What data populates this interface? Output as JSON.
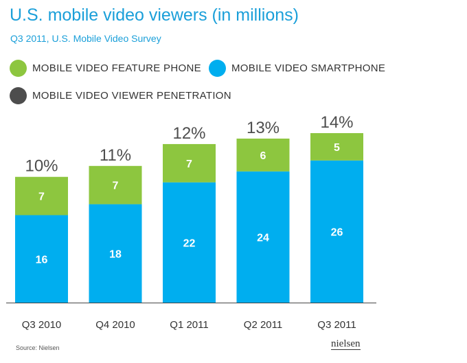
{
  "chart_data": {
    "type": "bar",
    "stacked": true,
    "title": "U.S. mobile video viewers (in millions)",
    "subtitle": "Q3 2011, U.S. Mobile Video Survey",
    "categories": [
      "Q3 2010",
      "Q4 2010",
      "Q1 2011",
      "Q2 2011",
      "Q3 2011"
    ],
    "series": [
      {
        "name": "MOBILE VIDEO SMARTPHONE",
        "color": "#00aeef",
        "values": [
          16,
          18,
          22,
          24,
          26
        ]
      },
      {
        "name": "MOBILE VIDEO FEATURE PHONE",
        "color": "#8dc63f",
        "values": [
          7,
          7,
          7,
          6,
          5
        ]
      }
    ],
    "penetration": {
      "name": "MOBILE VIDEO VIEWER PENETRATION",
      "color": "#4d4d4d",
      "labels": [
        "10%",
        "11%",
        "12%",
        "13%",
        "14%"
      ]
    },
    "ylim": [
      0,
      31
    ],
    "grid": false,
    "legend_position": "top"
  },
  "legend": [
    {
      "label": "MOBILE VIDEO FEATURE PHONE",
      "color": "#8dc63f"
    },
    {
      "label": "MOBILE VIDEO SMARTPHONE",
      "color": "#00aeef"
    },
    {
      "label": "MOBILE VIDEO VIEWER PENETRATION",
      "color": "#4d4d4d"
    }
  ],
  "source": "Source: Nielsen",
  "logo_text": "nielsen"
}
